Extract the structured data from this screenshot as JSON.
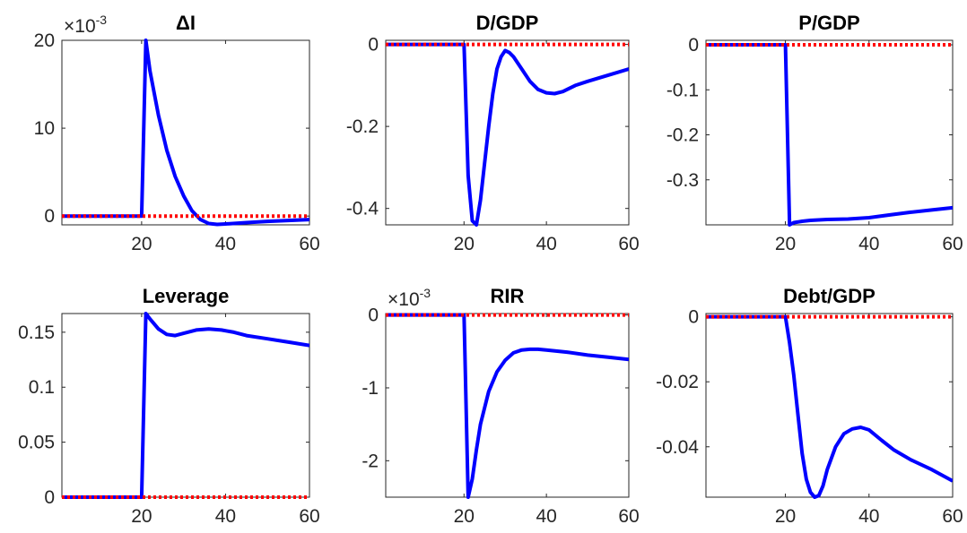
{
  "chart_data": [
    {
      "type": "line",
      "title": "ΔI",
      "exponent": {
        "base": "×10",
        "power": "-3"
      },
      "xlim": [
        1,
        60
      ],
      "ylim": [
        -1,
        20
      ],
      "xticks": [
        20,
        40,
        60
      ],
      "yticks": [
        0,
        10,
        20
      ],
      "ytick_labels": [
        "0",
        "10",
        "20"
      ],
      "series": [
        {
          "color": "#0000ff",
          "style": "solid",
          "x": [
            1,
            20,
            21,
            22,
            24,
            26,
            28,
            30,
            32,
            34,
            36,
            38,
            40,
            45,
            50,
            55,
            60
          ],
          "y": [
            0,
            0,
            20,
            16.5,
            11.5,
            7.5,
            4.5,
            2.3,
            0.6,
            -0.4,
            -0.85,
            -0.95,
            -0.9,
            -0.75,
            -0.6,
            -0.5,
            -0.4
          ]
        },
        {
          "color": "#ff0000",
          "style": "dotted",
          "x": [
            1,
            60
          ],
          "y": [
            0,
            0
          ]
        }
      ]
    },
    {
      "type": "line",
      "title": "D/GDP",
      "xlim": [
        1,
        60
      ],
      "ylim": [
        -0.44,
        0.01
      ],
      "xticks": [
        20,
        40,
        60
      ],
      "yticks": [
        0,
        -0.2,
        -0.4
      ],
      "ytick_labels": [
        "0",
        "-0.2",
        "-0.4"
      ],
      "series": [
        {
          "color": "#0000ff",
          "style": "solid",
          "x": [
            1,
            20,
            21,
            22,
            23,
            24,
            25,
            26,
            27,
            28,
            29,
            30,
            31,
            32,
            34,
            36,
            38,
            40,
            42,
            44,
            47,
            50,
            55,
            60
          ],
          "y": [
            0,
            0,
            -0.32,
            -0.43,
            -0.44,
            -0.38,
            -0.29,
            -0.2,
            -0.12,
            -0.06,
            -0.03,
            -0.015,
            -0.02,
            -0.03,
            -0.06,
            -0.09,
            -0.11,
            -0.118,
            -0.12,
            -0.115,
            -0.1,
            -0.09,
            -0.075,
            -0.06
          ]
        },
        {
          "color": "#ff0000",
          "style": "dotted",
          "x": [
            1,
            60
          ],
          "y": [
            0,
            0
          ]
        }
      ]
    },
    {
      "type": "line",
      "title": "P/GDP",
      "xlim": [
        1,
        60
      ],
      "ylim": [
        -0.4,
        0.01
      ],
      "xticks": [
        20,
        40,
        60
      ],
      "yticks": [
        0,
        -0.1,
        -0.2,
        -0.3
      ],
      "ytick_labels": [
        "0",
        "-0.1",
        "-0.2",
        "-0.3"
      ],
      "series": [
        {
          "color": "#0000ff",
          "style": "solid",
          "x": [
            1,
            20,
            21,
            22,
            24,
            26,
            30,
            35,
            40,
            45,
            50,
            55,
            60
          ],
          "y": [
            0,
            0,
            -0.4,
            -0.395,
            -0.392,
            -0.39,
            -0.388,
            -0.387,
            -0.384,
            -0.378,
            -0.372,
            -0.367,
            -0.362
          ]
        },
        {
          "color": "#ff0000",
          "style": "dotted",
          "x": [
            1,
            60
          ],
          "y": [
            0,
            0
          ]
        }
      ]
    },
    {
      "type": "line",
      "title": "Leverage",
      "xlim": [
        1,
        60
      ],
      "ylim": [
        0,
        0.167
      ],
      "xticks": [
        20,
        40,
        60
      ],
      "yticks": [
        0,
        0.05,
        0.1,
        0.15
      ],
      "ytick_labels": [
        "0",
        "0.05",
        "0.1",
        "0.15"
      ],
      "series": [
        {
          "color": "#0000ff",
          "style": "solid",
          "x": [
            1,
            20,
            21,
            22,
            24,
            26,
            28,
            30,
            33,
            36,
            39,
            42,
            45,
            50,
            55,
            60
          ],
          "y": [
            0,
            0,
            0.167,
            0.162,
            0.153,
            0.148,
            0.147,
            0.149,
            0.152,
            0.153,
            0.152,
            0.15,
            0.147,
            0.144,
            0.141,
            0.138
          ]
        },
        {
          "color": "#ff0000",
          "style": "dotted",
          "x": [
            1,
            60
          ],
          "y": [
            0,
            0
          ]
        }
      ]
    },
    {
      "type": "line",
      "title": "RIR",
      "exponent": {
        "base": "×10",
        "power": "-3"
      },
      "xlim": [
        1,
        60
      ],
      "ylim": [
        -2.5,
        0.02
      ],
      "xticks": [
        20,
        40,
        60
      ],
      "yticks": [
        0,
        -1,
        -2
      ],
      "ytick_labels": [
        "0",
        "-1",
        "-2"
      ],
      "series": [
        {
          "color": "#0000ff",
          "style": "solid",
          "x": [
            1,
            20,
            21,
            22,
            23,
            24,
            26,
            28,
            30,
            32,
            34,
            36,
            38,
            40,
            45,
            50,
            55,
            60
          ],
          "y": [
            0,
            0,
            -2.5,
            -2.25,
            -1.85,
            -1.5,
            -1.05,
            -0.78,
            -0.62,
            -0.52,
            -0.48,
            -0.47,
            -0.47,
            -0.48,
            -0.51,
            -0.55,
            -0.58,
            -0.61
          ]
        },
        {
          "color": "#ff0000",
          "style": "dotted",
          "x": [
            1,
            60
          ],
          "y": [
            0,
            0
          ]
        }
      ]
    },
    {
      "type": "line",
      "title": "Debt/GDP",
      "xlim": [
        1,
        60
      ],
      "ylim": [
        -0.0555,
        0.001
      ],
      "xticks": [
        20,
        40,
        60
      ],
      "yticks": [
        0,
        -0.02,
        -0.04
      ],
      "ytick_labels": [
        "0",
        "-0.02",
        "-0.04"
      ],
      "series": [
        {
          "color": "#0000ff",
          "style": "solid",
          "x": [
            1,
            20,
            21,
            22,
            23,
            24,
            25,
            26,
            27,
            28,
            29,
            30,
            32,
            34,
            36,
            38,
            40,
            43,
            46,
            50,
            55,
            60
          ],
          "y": [
            0,
            0,
            -0.008,
            -0.018,
            -0.03,
            -0.042,
            -0.05,
            -0.054,
            -0.0555,
            -0.055,
            -0.052,
            -0.047,
            -0.04,
            -0.036,
            -0.0345,
            -0.034,
            -0.0348,
            -0.038,
            -0.041,
            -0.044,
            -0.047,
            -0.0505
          ]
        },
        {
          "color": "#ff0000",
          "style": "dotted",
          "x": [
            1,
            60
          ],
          "y": [
            0,
            0
          ]
        }
      ]
    }
  ]
}
